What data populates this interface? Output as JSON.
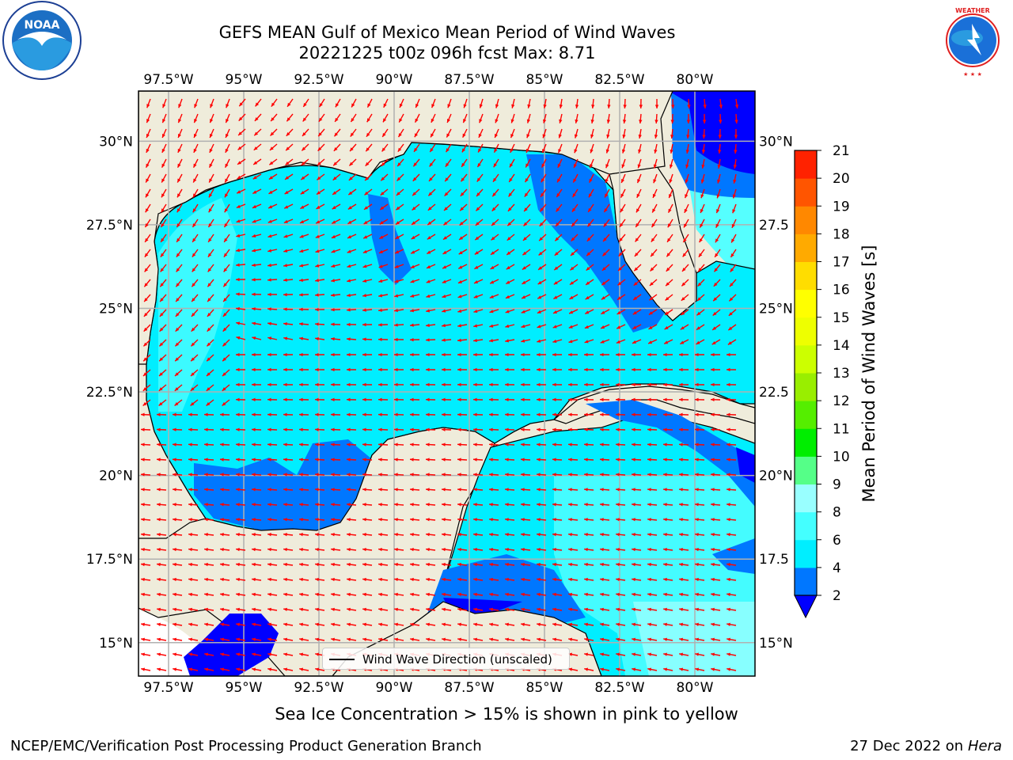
{
  "title": {
    "line1": "GEFS MEAN Gulf of Mexico Mean Period of Wind Waves",
    "line2": "20221225 t00z 096h fcst   Max: 8.71"
  },
  "logos": {
    "left_icon": "noaa-logo-icon",
    "left_text": "NOAA",
    "right_icon": "nws-logo-icon",
    "right_text": "NATIONAL WEATHER SERVICE"
  },
  "map": {
    "lon_range": [
      -98.5,
      -78.0
    ],
    "lat_range": [
      14.0,
      31.5
    ],
    "lon_ticks": [
      {
        "value": -97.5,
        "label": "97.5°W"
      },
      {
        "value": -95,
        "label": "95°W"
      },
      {
        "value": -92.5,
        "label": "92.5°W"
      },
      {
        "value": -90,
        "label": "90°W"
      },
      {
        "value": -87.5,
        "label": "87.5°W"
      },
      {
        "value": -85,
        "label": "85°W"
      },
      {
        "value": -82.5,
        "label": "82.5°W"
      },
      {
        "value": -80,
        "label": "80°W"
      }
    ],
    "lat_ticks_left": [
      {
        "value": 30,
        "label": "30°N"
      },
      {
        "value": 27.5,
        "label": "27.5°N"
      },
      {
        "value": 25,
        "label": "25°N"
      },
      {
        "value": 22.5,
        "label": "22.5°N"
      },
      {
        "value": 20,
        "label": "20°N"
      },
      {
        "value": 17.5,
        "label": "17.5°N"
      },
      {
        "value": 15,
        "label": "15°N"
      }
    ],
    "lat_ticks_right": [
      {
        "value": 30,
        "label": "30°N"
      },
      {
        "value": 27.5,
        "label": "27.5"
      },
      {
        "value": 25,
        "label": "25°N"
      },
      {
        "value": 22.5,
        "label": "22.5"
      },
      {
        "value": 20,
        "label": "20°N"
      },
      {
        "value": 17.5,
        "label": "17.5"
      },
      {
        "value": 15,
        "label": "15°N"
      }
    ],
    "colors": {
      "land": "#efecdb",
      "coast": "#000000",
      "grid": "#b0b0b0",
      "arrow": "#ff0000",
      "period_2_4": "#0077ff",
      "period_4_6": "#00eeff",
      "period_6_8": "#55ffff",
      "period_lt_2": "#0000ff"
    },
    "legend": "Wind Wave Direction (unscaled)"
  },
  "colorbar": {
    "label": "Mean Period of Wind Waves [s]",
    "levels": [
      2,
      4,
      6,
      8,
      9,
      10,
      11,
      12,
      13,
      14,
      15,
      16,
      17,
      18,
      19,
      20,
      21
    ],
    "colors": [
      "#0077ff",
      "#00eeff",
      "#44ffff",
      "#99ffff",
      "#55ff88",
      "#00ee00",
      "#55ee00",
      "#99ee00",
      "#ccff00",
      "#eeff00",
      "#ffff00",
      "#ffdd00",
      "#ffaa00",
      "#ff8800",
      "#ff5500",
      "#ff2200"
    ],
    "under_color": "#0000ff"
  },
  "note": "Sea Ice Concentration > 15% is shown in pink to yellow",
  "footer": {
    "left": "NCEP/EMC/Verification Post Processing Product Generation Branch",
    "right_date": "27 Dec 2022 on",
    "right_host": "Hera"
  }
}
